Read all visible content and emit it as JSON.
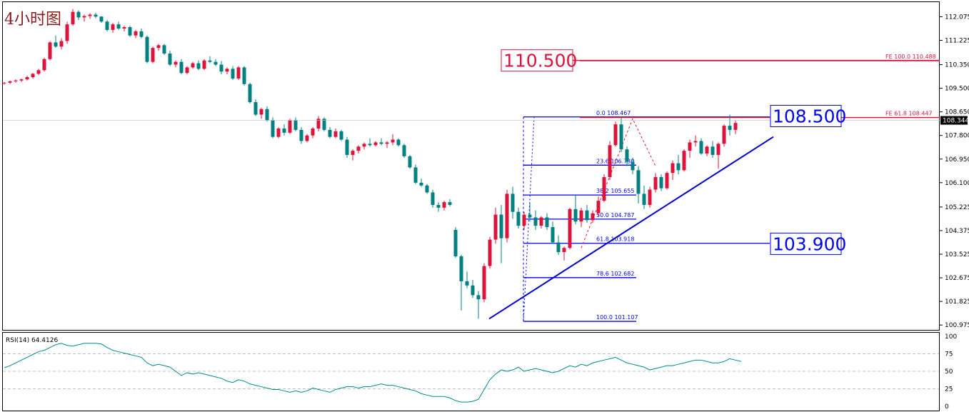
{
  "title": "4小时图",
  "chart_data": {
    "type": "candlestick",
    "price_axis": {
      "ylim": [
        100.8,
        112.6
      ],
      "ticks": [
        "112.075",
        "111.225",
        "110.350",
        "109.500",
        "108.650",
        "107.800",
        "106.950",
        "106.100",
        "105.225",
        "104.375",
        "103.525",
        "102.675",
        "101.825",
        "100.975"
      ],
      "current_price": "108.344"
    },
    "candles": [
      [
        109.68,
        109.72,
        109.62,
        109.7
      ],
      [
        109.7,
        109.78,
        109.65,
        109.75
      ],
      [
        109.75,
        109.82,
        109.7,
        109.78
      ],
      [
        109.78,
        109.85,
        109.72,
        109.82
      ],
      [
        109.82,
        109.95,
        109.78,
        109.9
      ],
      [
        109.9,
        110.05,
        109.85,
        110.02
      ],
      [
        110.02,
        110.2,
        109.98,
        110.15
      ],
      [
        110.15,
        110.6,
        110.1,
        110.55
      ],
      [
        110.55,
        111.2,
        110.5,
        111.15
      ],
      [
        111.15,
        111.4,
        110.95,
        111.0
      ],
      [
        111.0,
        111.3,
        110.9,
        111.2
      ],
      [
        111.2,
        111.9,
        111.1,
        111.8
      ],
      [
        111.8,
        112.35,
        111.75,
        112.25
      ],
      [
        112.25,
        112.3,
        111.95,
        112.05
      ],
      [
        112.05,
        112.15,
        111.9,
        112.1
      ],
      [
        112.1,
        112.2,
        112.0,
        112.15
      ],
      [
        112.15,
        112.22,
        112.02,
        112.08
      ],
      [
        112.08,
        112.1,
        111.85,
        111.9
      ],
      [
        111.9,
        111.95,
        111.55,
        111.6
      ],
      [
        111.6,
        111.85,
        111.5,
        111.8
      ],
      [
        111.8,
        111.9,
        111.6,
        111.65
      ],
      [
        111.65,
        111.75,
        111.55,
        111.7
      ],
      [
        111.7,
        111.75,
        111.35,
        111.4
      ],
      [
        111.4,
        111.6,
        111.3,
        111.55
      ],
      [
        111.55,
        111.65,
        111.3,
        111.35
      ],
      [
        111.35,
        111.4,
        110.4,
        110.45
      ],
      [
        110.45,
        111.0,
        110.4,
        110.95
      ],
      [
        110.95,
        111.1,
        110.85,
        111.05
      ],
      [
        111.05,
        111.1,
        110.7,
        110.75
      ],
      [
        110.75,
        110.85,
        110.3,
        110.35
      ],
      [
        110.35,
        110.5,
        110.25,
        110.45
      ],
      [
        110.45,
        110.55,
        110.0,
        110.05
      ],
      [
        110.05,
        110.3,
        110.0,
        110.25
      ],
      [
        110.25,
        110.45,
        110.2,
        110.4
      ],
      [
        110.4,
        110.5,
        110.15,
        110.2
      ],
      [
        110.2,
        110.55,
        110.15,
        110.5
      ],
      [
        110.5,
        110.65,
        110.4,
        110.45
      ],
      [
        110.45,
        110.55,
        110.3,
        110.35
      ],
      [
        110.35,
        110.48,
        110.0,
        110.1
      ],
      [
        110.1,
        110.25,
        110.0,
        110.2
      ],
      [
        110.2,
        110.3,
        109.8,
        109.85
      ],
      [
        109.85,
        110.3,
        109.8,
        110.25
      ],
      [
        110.25,
        110.3,
        109.6,
        109.65
      ],
      [
        109.65,
        109.7,
        108.95,
        109.0
      ],
      [
        109.0,
        109.1,
        108.5,
        108.55
      ],
      [
        108.55,
        108.8,
        108.4,
        108.75
      ],
      [
        108.75,
        108.85,
        108.3,
        108.35
      ],
      [
        108.35,
        108.45,
        107.7,
        107.75
      ],
      [
        107.75,
        108.1,
        107.7,
        108.05
      ],
      [
        108.05,
        108.2,
        107.8,
        107.9
      ],
      [
        107.9,
        108.4,
        107.85,
        108.35
      ],
      [
        108.35,
        108.45,
        107.95,
        108.0
      ],
      [
        108.0,
        108.1,
        107.5,
        107.6
      ],
      [
        107.6,
        107.85,
        107.55,
        107.8
      ],
      [
        107.8,
        108.1,
        107.7,
        108.05
      ],
      [
        108.05,
        108.5,
        107.95,
        108.4
      ],
      [
        108.4,
        108.45,
        107.95,
        108.0
      ],
      [
        108.0,
        108.1,
        107.7,
        107.75
      ],
      [
        107.75,
        108.05,
        107.7,
        107.95
      ],
      [
        107.95,
        108.0,
        107.6,
        107.65
      ],
      [
        107.65,
        107.75,
        107.0,
        107.1
      ],
      [
        107.1,
        107.3,
        106.9,
        107.25
      ],
      [
        107.25,
        107.45,
        107.15,
        107.4
      ],
      [
        107.4,
        107.55,
        107.3,
        107.5
      ],
      [
        107.5,
        107.7,
        107.4,
        107.45
      ],
      [
        107.45,
        107.6,
        107.4,
        107.55
      ],
      [
        107.55,
        107.7,
        107.45,
        107.5
      ],
      [
        107.5,
        107.6,
        107.35,
        107.55
      ],
      [
        107.55,
        107.85,
        107.45,
        107.65
      ],
      [
        107.65,
        107.7,
        107.4,
        107.45
      ],
      [
        107.45,
        107.5,
        107.0,
        107.05
      ],
      [
        107.05,
        107.1,
        106.6,
        106.65
      ],
      [
        106.65,
        106.75,
        106.05,
        106.1
      ],
      [
        106.1,
        106.25,
        105.95,
        106.0
      ],
      [
        106.0,
        106.05,
        105.7,
        105.75
      ],
      [
        105.75,
        105.85,
        105.2,
        105.3
      ],
      [
        105.3,
        105.4,
        105.05,
        105.2
      ],
      [
        105.2,
        105.45,
        105.1,
        105.4
      ],
      [
        105.4,
        105.5,
        105.25,
        105.3
      ],
      [
        104.4,
        104.5,
        103.4,
        103.45
      ],
      [
        103.45,
        103.5,
        101.5,
        102.55
      ],
      [
        102.55,
        102.9,
        102.3,
        102.4
      ],
      [
        102.4,
        102.6,
        101.95,
        102.05
      ],
      [
        102.05,
        102.2,
        101.2,
        101.9
      ],
      [
        101.9,
        103.2,
        101.8,
        103.1
      ],
      [
        103.1,
        104.15,
        103.0,
        104.05
      ],
      [
        104.05,
        105.2,
        103.9,
        104.95
      ],
      [
        104.95,
        105.3,
        103.2,
        104.1
      ],
      [
        104.1,
        105.85,
        103.95,
        105.7
      ],
      [
        105.7,
        105.95,
        104.8,
        105.05
      ],
      [
        105.05,
        105.2,
        104.45,
        104.55
      ],
      [
        104.55,
        105.05,
        104.4,
        104.95
      ],
      [
        104.95,
        105.4,
        104.7,
        104.85
      ],
      [
        104.85,
        105.1,
        104.4,
        104.55
      ],
      [
        104.55,
        104.9,
        104.45,
        104.85
      ],
      [
        104.85,
        105.0,
        104.4,
        104.5
      ],
      [
        104.5,
        104.7,
        103.9,
        103.95
      ],
      [
        103.95,
        104.2,
        103.5,
        103.6
      ],
      [
        103.6,
        103.8,
        103.3,
        103.75
      ],
      [
        103.75,
        105.2,
        103.7,
        105.15
      ],
      [
        105.15,
        105.65,
        104.6,
        104.7
      ],
      [
        104.7,
        105.2,
        104.5,
        105.1
      ],
      [
        105.1,
        105.3,
        104.65,
        104.75
      ],
      [
        104.75,
        105.1,
        104.65,
        105.0
      ],
      [
        105.0,
        105.6,
        104.9,
        105.45
      ],
      [
        105.45,
        106.4,
        105.4,
        106.3
      ],
      [
        106.3,
        107.6,
        106.2,
        107.45
      ],
      [
        107.45,
        108.3,
        107.4,
        108.2
      ],
      [
        108.2,
        108.48,
        107.2,
        107.3
      ],
      [
        107.3,
        107.4,
        106.7,
        106.85
      ],
      [
        106.85,
        107.0,
        106.4,
        106.55
      ],
      [
        106.55,
        106.7,
        105.35,
        105.7
      ],
      [
        105.7,
        106.0,
        105.15,
        105.3
      ],
      [
        105.3,
        105.95,
        105.2,
        105.85
      ],
      [
        105.85,
        106.45,
        105.75,
        106.3
      ],
      [
        106.3,
        106.4,
        105.8,
        105.9
      ],
      [
        105.9,
        106.5,
        105.85,
        106.45
      ],
      [
        106.45,
        106.9,
        106.2,
        106.8
      ],
      [
        106.8,
        107.1,
        106.4,
        106.55
      ],
      [
        106.55,
        107.3,
        106.5,
        107.25
      ],
      [
        107.25,
        107.65,
        107.0,
        107.55
      ],
      [
        107.55,
        107.8,
        107.4,
        107.6
      ],
      [
        107.6,
        107.7,
        107.1,
        107.15
      ],
      [
        107.15,
        107.45,
        107.05,
        107.4
      ],
      [
        107.4,
        107.6,
        107.0,
        107.1
      ],
      [
        107.1,
        107.55,
        106.6,
        107.5
      ],
      [
        107.5,
        108.2,
        107.4,
        108.15
      ],
      [
        108.15,
        108.55,
        107.8,
        108.0
      ],
      [
        108.0,
        108.35,
        107.85,
        108.25
      ]
    ],
    "fibonacci_retracement": {
      "levels": [
        {
          "ratio": "0.0",
          "price": 108.467,
          "label": "0.0  108.467"
        },
        {
          "ratio": "23.6",
          "price": 106.73,
          "label": "23.6  106.730"
        },
        {
          "ratio": "38.2",
          "price": 105.655,
          "label": "38.2  105.655"
        },
        {
          "ratio": "50.0",
          "price": 104.787,
          "label": "50.0  104.787"
        },
        {
          "ratio": "61.8",
          "price": 103.918,
          "label": "61.8  103.918"
        },
        {
          "ratio": "78.6",
          "price": 102.682,
          "label": "78.6  102.682"
        },
        {
          "ratio": "100.0",
          "price": 101.107,
          "label": "100.0  101.107"
        }
      ]
    },
    "fibonacci_expansion": {
      "levels": [
        {
          "price": 110.488,
          "label": "FE 100.0  110.488"
        },
        {
          "price": 108.447,
          "label": "FE 61.8  108.447"
        }
      ]
    },
    "annotations": [
      {
        "text": "110.500",
        "price": 110.5,
        "color": "#dc143c"
      },
      {
        "text": "108.500",
        "price": 108.5,
        "color": "#0000ff"
      },
      {
        "text": "103.900",
        "price": 103.9,
        "color": "#0000ff"
      }
    ],
    "trendline": {
      "from": [
        83,
        101.2
      ],
      "to": [
        135,
        107.75
      ]
    },
    "rsi": {
      "label": "RSI(14) 64.4126",
      "ticks": [
        "100",
        "75",
        "50",
        "25",
        "0"
      ],
      "levels": [
        75,
        50,
        25
      ],
      "values": [
        55,
        58,
        62,
        66,
        70,
        74,
        78,
        80,
        84,
        88,
        90,
        87,
        86,
        88,
        90,
        90,
        90,
        89,
        84,
        80,
        78,
        76,
        74,
        72,
        70,
        62,
        58,
        60,
        58,
        56,
        50,
        44,
        48,
        46,
        48,
        46,
        44,
        42,
        40,
        36,
        34,
        38,
        36,
        32,
        30,
        28,
        26,
        24,
        24,
        22,
        20,
        22,
        20,
        22,
        26,
        24,
        22,
        20,
        24,
        26,
        28,
        28,
        26,
        28,
        28,
        30,
        32,
        30,
        30,
        28,
        26,
        24,
        22,
        18,
        16,
        14,
        14,
        14,
        12,
        8,
        6,
        6,
        7,
        10,
        24,
        38,
        46,
        52,
        50,
        52,
        56,
        50,
        52,
        54,
        52,
        50,
        48,
        50,
        54,
        58,
        56,
        60,
        58,
        62,
        64,
        66,
        68,
        70,
        66,
        62,
        60,
        58,
        56,
        52,
        54,
        56,
        58,
        58,
        60,
        62,
        64,
        66,
        66,
        64,
        62,
        62,
        64,
        68,
        66,
        64
      ]
    },
    "colors": {
      "bull": "#dc143c",
      "bear": "#008080",
      "fib": "#0000ff",
      "fe": "#dc143c",
      "rsi": "#008b8b"
    }
  }
}
